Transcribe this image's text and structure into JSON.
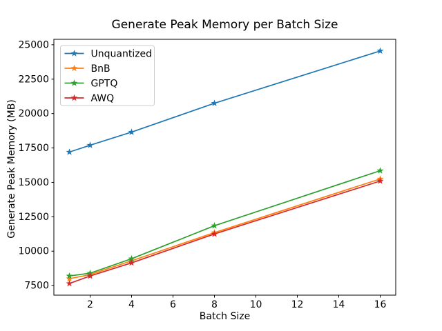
{
  "chart_data": {
    "type": "line",
    "title": "Generate Peak Memory per Batch Size",
    "xlabel": "Batch Size",
    "ylabel": "Generate Peak Memory (MB)",
    "x": [
      1,
      2,
      4,
      8,
      16
    ],
    "series": [
      {
        "name": "Unquantized",
        "color": "#1f77b4",
        "values": [
          17200,
          17700,
          18650,
          20750,
          24550
        ]
      },
      {
        "name": "BnB",
        "color": "#ff7f0e",
        "values": [
          8000,
          8300,
          9300,
          11350,
          15250
        ]
      },
      {
        "name": "GPTQ",
        "color": "#2ca02c",
        "values": [
          8200,
          8400,
          9450,
          11850,
          15850
        ]
      },
      {
        "name": "AWQ",
        "color": "#d62728",
        "values": [
          7650,
          8200,
          9150,
          11250,
          15100
        ]
      }
    ],
    "marker": "star",
    "xticks": [
      2,
      4,
      6,
      8,
      10,
      12,
      14,
      16
    ],
    "yticks": [
      7500,
      10000,
      12500,
      15000,
      17500,
      20000,
      22500,
      25000
    ],
    "xlim": [
      0.25,
      16.75
    ],
    "ylim": [
      6805,
      25395
    ],
    "grid": false,
    "legend_position": "upper-left",
    "axis_color": "#000000",
    "legend_border_color": "#cccccc",
    "background_color": "#ffffff"
  }
}
